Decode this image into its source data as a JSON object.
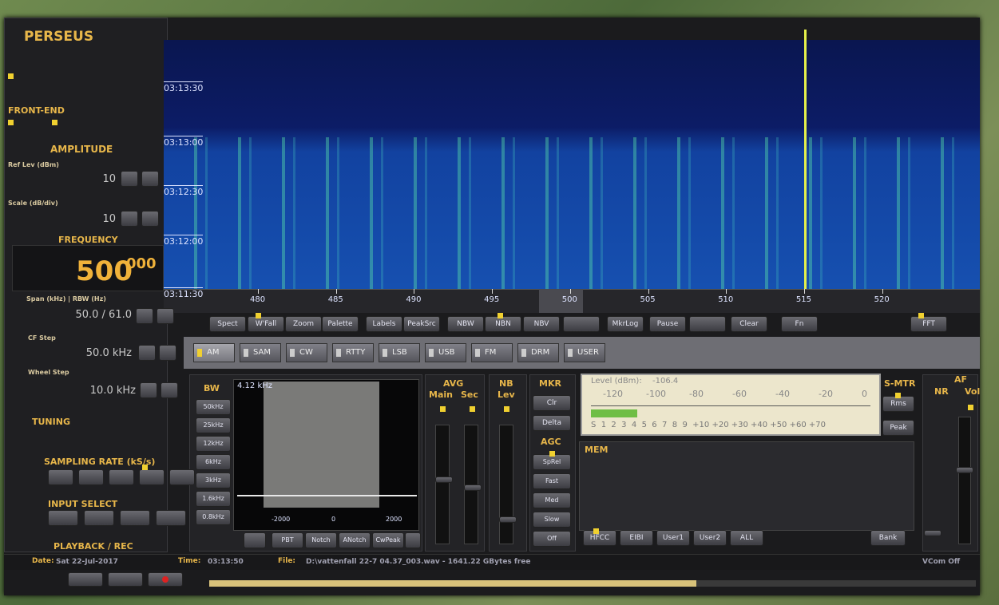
{
  "app": {
    "title": "PERSEUS"
  },
  "left_panel": {
    "front_end": "FRONT-END",
    "amplitude": "AMPLITUDE",
    "ref_lev_label": "Ref Lev (dBm)",
    "ref_lev": "10",
    "scale_label": "Scale (dB/div)",
    "scale": "10",
    "frequency": "FREQUENCY",
    "freq_main": "500",
    "freq_sub": "000",
    "span_label": "Span (kHz) | RBW (Hz)",
    "span": "50.0 / 61.0",
    "cf_step_label": "CF Step",
    "cf_step": "50.0 kHz",
    "wheel_step_label": "Wheel Step",
    "wheel_step": "10.0 kHz",
    "tuning": "TUNING",
    "sampling_rate": "SAMPLING RATE (kS/s)",
    "input_select": "INPUT SELECT",
    "playback": "PLAYBACK / REC"
  },
  "waterfall": {
    "time_labels": [
      "03:13:30",
      "03:13:00",
      "03:12:30",
      "03:12:00",
      "03:11:30"
    ],
    "freq_labels": [
      "480",
      "485",
      "490",
      "495",
      "500",
      "505",
      "510",
      "515",
      "520"
    ]
  },
  "toolbar": [
    "Spect",
    "W'Fall",
    "Zoom",
    "Palette",
    "Labels",
    "PeakSrc",
    "NBW",
    "NBN",
    "NBV",
    "MkrLog",
    "Pause",
    "Clear",
    "Fn",
    "FFT"
  ],
  "modes": [
    "AM",
    "SAM",
    "CW",
    "RTTY",
    "LSB",
    "USB",
    "FM",
    "DRM",
    "USER"
  ],
  "bw": {
    "title": "BW",
    "value": "4.12 kHz",
    "buttons": [
      "50kHz",
      "25kHz",
      "12kHz",
      "6kHz",
      "3kHz",
      "1.6kHz",
      "0.8kHz"
    ],
    "axis": [
      "-2000",
      "0",
      "2000"
    ],
    "bottom": [
      "PBT",
      "Notch",
      "ANotch",
      "CwPeak"
    ]
  },
  "avg": {
    "title": "AVG",
    "main": "Main",
    "sec": "Sec"
  },
  "nb": {
    "title": "NB",
    "lev": "Lev"
  },
  "mkr": {
    "title": "MKR",
    "buttons": [
      "Clr",
      "Delta"
    ]
  },
  "agc": {
    "title": "AGC",
    "buttons": [
      "SpRel",
      "Fast",
      "Med",
      "Slow",
      "Off"
    ]
  },
  "meter": {
    "label": "Level (dBm):",
    "value": "-106.4",
    "dbm_scale": [
      "-120",
      "-100",
      "-80",
      "-60",
      "-40",
      "-20",
      "0"
    ],
    "s_scale": "S  1  2  3  4  5  6  7  8  9  +10 +20 +30 +40 +50 +60 +70"
  },
  "smtr": {
    "title": "S-MTR",
    "buttons": [
      "Rms",
      "Peak"
    ]
  },
  "af": {
    "title": "AF",
    "nr": "NR",
    "vol": "Vol"
  },
  "mem": {
    "title": "MEM",
    "buttons": [
      "HFCC",
      "EIBI",
      "User1",
      "User2",
      "ALL"
    ],
    "bank": "Bank"
  },
  "status": {
    "date_label": "Date:",
    "date": "Sat 22-Jul-2017",
    "time_label": "Time:",
    "time": "03:13:50",
    "file_label": "File:",
    "file": "D:\\vattenfall 22-7 04.37_003.wav - 1641.22 GBytes free",
    "vcom": "VCom Off"
  }
}
